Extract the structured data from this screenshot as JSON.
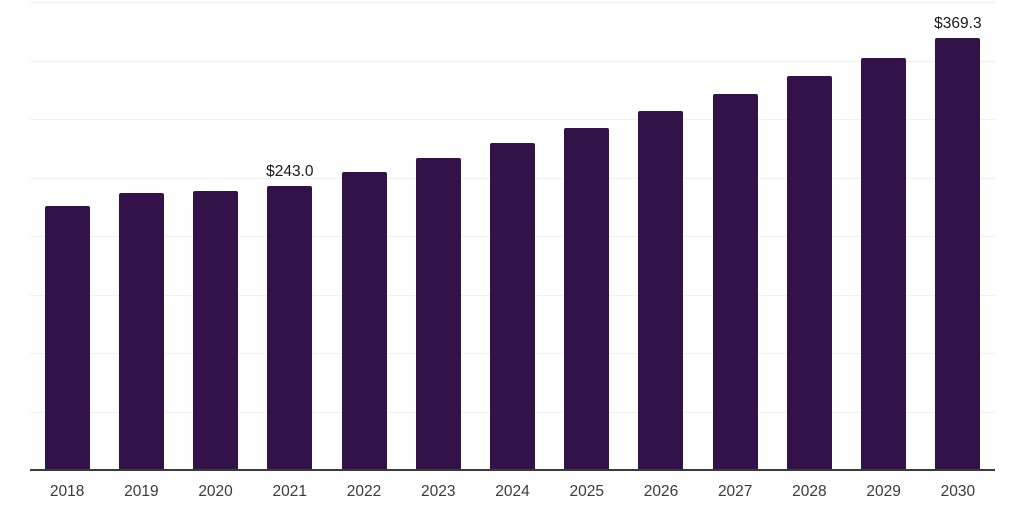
{
  "chart_data": {
    "type": "bar",
    "title": "",
    "xlabel": "",
    "ylabel": "",
    "categories": [
      "2018",
      "2019",
      "2020",
      "2021",
      "2022",
      "2023",
      "2024",
      "2025",
      "2026",
      "2027",
      "2028",
      "2029",
      "2030"
    ],
    "values": [
      225.4,
      236.6,
      238.3,
      243.0,
      254.6,
      266.7,
      279.4,
      292.7,
      306.6,
      321.2,
      336.5,
      352.5,
      369.3
    ],
    "data_labels": [
      "",
      "",
      "",
      "$243.0",
      "",
      "",
      "",
      "",
      "",
      "",
      "",
      "",
      "$369.3"
    ],
    "value_prefix": "$",
    "ylim": [
      0,
      400
    ],
    "gridline_step": 50,
    "grid": true,
    "legend": false,
    "y_tick_labels_visible": false,
    "colors": {
      "bar": "#331149",
      "axis_line": "#3b3b3b",
      "gridline": "#f1f1f3",
      "tick_label": "#3a3a3a",
      "data_label": "#1a1a1a",
      "background": "#ffffff"
    }
  }
}
